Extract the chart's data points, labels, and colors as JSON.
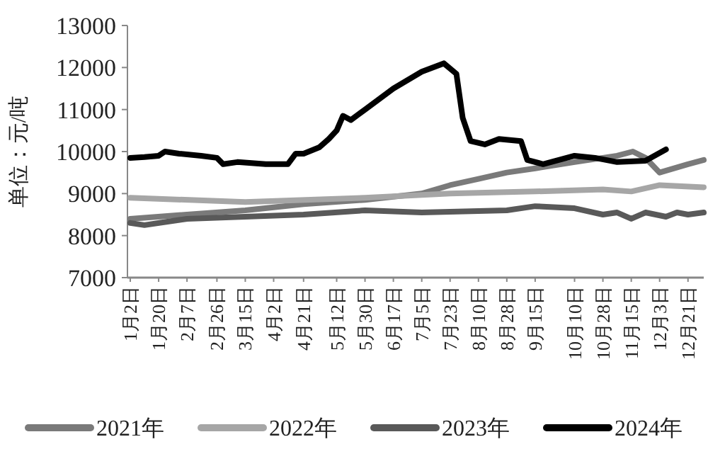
{
  "chart_data": {
    "type": "line",
    "ylabel": "单位：元/吨",
    "ylim": [
      7000,
      13000
    ],
    "yticks": [
      7000,
      8000,
      9000,
      10000,
      11000,
      12000,
      13000
    ],
    "xlim": [
      "--01-02",
      "--12-31"
    ],
    "xticks": [
      {
        "value": "--01-02",
        "label": "1月2日"
      },
      {
        "value": "--01-20",
        "label": "1月20日"
      },
      {
        "value": "--02-07",
        "label": "2月7日"
      },
      {
        "value": "--02-26",
        "label": "2月26日"
      },
      {
        "value": "--03-15",
        "label": "3月15日"
      },
      {
        "value": "--04-02",
        "label": "4月2日"
      },
      {
        "value": "--04-21",
        "label": "4月21日"
      },
      {
        "value": "--05-12",
        "label": "5月12日"
      },
      {
        "value": "--05-30",
        "label": "5月30日"
      },
      {
        "value": "--06-17",
        "label": "6月17日"
      },
      {
        "value": "--07-05",
        "label": "7月5日"
      },
      {
        "value": "--07-23",
        "label": "7月23日"
      },
      {
        "value": "--08-10",
        "label": "8月10日"
      },
      {
        "value": "--08-28",
        "label": "8月28日"
      },
      {
        "value": "--09-15",
        "label": "9月15日"
      },
      {
        "value": "--10-10",
        "label": "10月10日"
      },
      {
        "value": "--10-28",
        "label": "10月28日"
      },
      {
        "value": "--11-15",
        "label": "11月15日"
      },
      {
        "value": "--12-03",
        "label": "12月3日"
      },
      {
        "value": "--12-21",
        "label": "12月21日"
      }
    ],
    "legend": "bottom",
    "grid": false,
    "marker": "none",
    "line_style": "solid",
    "series": [
      {
        "name": "2021年",
        "color": "#7a7a7a",
        "x": [
          "--01-02",
          "--02-07",
          "--03-15",
          "--04-21",
          "--05-30",
          "--07-05",
          "--07-23",
          "--08-10",
          "--08-28",
          "--09-15",
          "--10-10",
          "--10-28",
          "--11-06",
          "--11-16",
          "--11-24",
          "--12-03",
          "--12-21",
          "--12-31"
        ],
        "values": [
          8400,
          8500,
          8600,
          8750,
          8850,
          9000,
          9200,
          9350,
          9500,
          9600,
          9750,
          9850,
          9900,
          10000,
          9850,
          9500,
          9700,
          9800
        ]
      },
      {
        "name": "2022年",
        "color": "#a6a6a6",
        "x": [
          "--01-02",
          "--03-15",
          "--05-30",
          "--07-23",
          "--09-15",
          "--10-28",
          "--11-15",
          "--12-03",
          "--12-31"
        ],
        "values": [
          8900,
          8800,
          8900,
          9000,
          9050,
          9100,
          9050,
          9200,
          9150
        ]
      },
      {
        "name": "2023年",
        "color": "#595959",
        "x": [
          "--01-02",
          "--01-11",
          "--02-07",
          "--03-15",
          "--04-21",
          "--05-30",
          "--07-05",
          "--08-28",
          "--09-15",
          "--10-10",
          "--10-28",
          "--11-06",
          "--11-15",
          "--11-24",
          "--12-07",
          "--12-14",
          "--12-21",
          "--12-31"
        ],
        "values": [
          8300,
          8250,
          8400,
          8450,
          8500,
          8600,
          8550,
          8600,
          8700,
          8650,
          8500,
          8550,
          8400,
          8550,
          8450,
          8550,
          8500,
          8550
        ]
      },
      {
        "name": "2024年",
        "color": "#000000",
        "x": [
          "--01-02",
          "--01-11",
          "--01-20",
          "--01-24",
          "--02-02",
          "--02-16",
          "--02-26",
          "--03-01",
          "--03-10",
          "--03-28",
          "--04-11",
          "--04-16",
          "--04-21",
          "--05-01",
          "--05-07",
          "--05-12",
          "--05-16",
          "--05-21",
          "--05-30",
          "--06-17",
          "--07-05",
          "--07-19",
          "--07-27",
          "--07-31",
          "--08-05",
          "--08-14",
          "--08-23",
          "--09-06",
          "--09-10",
          "--09-20",
          "--10-10",
          "--10-23",
          "--11-06",
          "--11-24",
          "--12-07"
        ],
        "values": [
          9850,
          9870,
          9900,
          10000,
          9950,
          9900,
          9850,
          9700,
          9750,
          9700,
          9700,
          9950,
          9950,
          10100,
          10300,
          10500,
          10850,
          10750,
          11000,
          11500,
          11900,
          12100,
          11850,
          10800,
          10250,
          10170,
          10300,
          10250,
          9800,
          9700,
          9900,
          9850,
          9750,
          9780,
          10050
        ]
      }
    ]
  }
}
